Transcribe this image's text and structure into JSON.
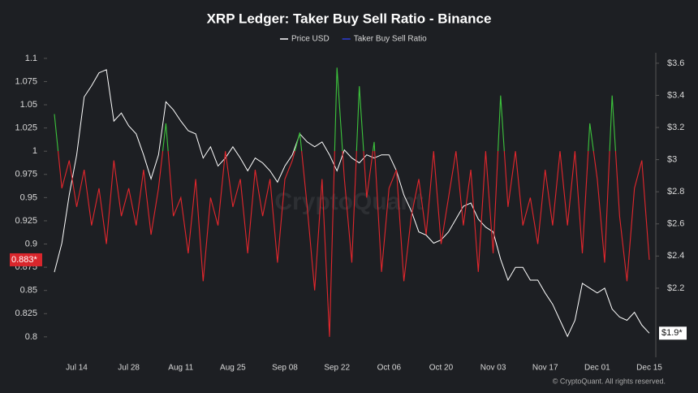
{
  "chart_data": {
    "type": "line",
    "title": "XRP Ledger: Taker Buy Sell Ratio - Binance",
    "watermark": "CryptoQuant",
    "credit": "© CryptoQuant. All rights reserved.",
    "categories": [
      null,
      null,
      null,
      "Jul 14",
      null,
      null,
      null,
      null,
      null,
      null,
      "Jul 28",
      null,
      null,
      null,
      null,
      null,
      null,
      "Aug 11",
      null,
      null,
      null,
      null,
      null,
      null,
      "Aug 25",
      null,
      null,
      null,
      null,
      null,
      null,
      "Sep 08",
      null,
      null,
      null,
      null,
      null,
      null,
      "Sep 22",
      null,
      null,
      null,
      null,
      null,
      null,
      "Oct 06",
      null,
      null,
      null,
      null,
      null,
      null,
      "Oct 20",
      null,
      null,
      null,
      null,
      null,
      null,
      "Nov 03",
      null,
      null,
      null,
      null,
      null,
      null,
      "Nov 17",
      null,
      null,
      null,
      null,
      null,
      null,
      "Dec 01",
      null,
      null,
      null,
      null,
      null,
      null,
      "Dec 15"
    ],
    "series": [
      {
        "name": "Price USD",
        "color": "#ffffff",
        "axis": "y2",
        "values": [
          2.3,
          2.48,
          2.78,
          3.03,
          3.39,
          3.46,
          3.54,
          3.56,
          3.24,
          3.29,
          3.21,
          3.16,
          3.03,
          2.88,
          3.03,
          3.36,
          3.31,
          3.24,
          3.18,
          3.16,
          3.01,
          3.08,
          2.96,
          3.01,
          3.08,
          3.01,
          2.93,
          3.01,
          2.98,
          2.93,
          2.86,
          2.96,
          3.03,
          3.16,
          3.11,
          3.08,
          3.11,
          3.03,
          2.93,
          3.06,
          3.01,
          2.98,
          3.03,
          3.01,
          3.03,
          3.03,
          2.93,
          2.78,
          2.68,
          2.55,
          2.53,
          2.48,
          2.5,
          2.55,
          2.63,
          2.71,
          2.73,
          2.63,
          2.58,
          2.55,
          2.38,
          2.25,
          2.33,
          2.33,
          2.25,
          2.25,
          2.17,
          2.1,
          2.0,
          1.9,
          2.0,
          2.23,
          2.2,
          2.17,
          2.2,
          2.07,
          2.02,
          2.0,
          2.05,
          1.97,
          1.92
        ]
      },
      {
        "name": "Taker Buy Sell Ratio",
        "color": "#2f3fd8",
        "above_color": "#3cc43c",
        "below_color": "#e3262c",
        "baseline": 1,
        "values": [
          1.04,
          0.96,
          0.99,
          0.94,
          0.98,
          0.92,
          0.96,
          0.9,
          0.99,
          0.93,
          0.96,
          0.92,
          0.98,
          0.91,
          0.96,
          1.03,
          0.93,
          0.95,
          0.89,
          0.97,
          0.86,
          0.95,
          0.92,
          1.0,
          0.94,
          0.97,
          0.89,
          0.98,
          0.93,
          0.97,
          0.88,
          0.97,
          0.99,
          1.02,
          0.94,
          0.85,
          0.97,
          0.8,
          1.09,
          0.97,
          0.88,
          1.07,
          0.95,
          1.01,
          0.87,
          0.96,
          0.98,
          0.86,
          0.93,
          0.97,
          0.91,
          1.0,
          0.9,
          0.95,
          1.0,
          0.92,
          0.98,
          0.87,
          1.0,
          0.89,
          1.06,
          0.94,
          1.0,
          0.92,
          0.95,
          0.9,
          0.98,
          0.92,
          1.0,
          0.92,
          1.0,
          0.89,
          1.03,
          0.97,
          0.88,
          1.06,
          0.93,
          0.86,
          0.96,
          0.99,
          0.883
        ]
      }
    ],
    "current_ratio_label": "0.883*",
    "current_price_label": "$1.9*",
    "ylim": [
      0.778,
      1.106
    ],
    "yticks": [
      0.8,
      0.825,
      0.85,
      0.875,
      0.9,
      0.925,
      0.95,
      0.975,
      1,
      1.025,
      1.05,
      1.075,
      1.1
    ],
    "y2lim": [
      1.77,
      3.665
    ],
    "y2ticks": [
      {
        "value": 2.2,
        "label": "$2.2"
      },
      {
        "value": 2.4,
        "label": "$2.4"
      },
      {
        "value": 2.6,
        "label": "$2.6"
      },
      {
        "value": 2.8,
        "label": "$2.8"
      },
      {
        "value": 3,
        "label": "$3"
      },
      {
        "value": 3.2,
        "label": "$3.2"
      },
      {
        "value": 3.4,
        "label": "$3.4"
      },
      {
        "value": 3.6,
        "label": "$3.6"
      }
    ],
    "grid": false
  }
}
